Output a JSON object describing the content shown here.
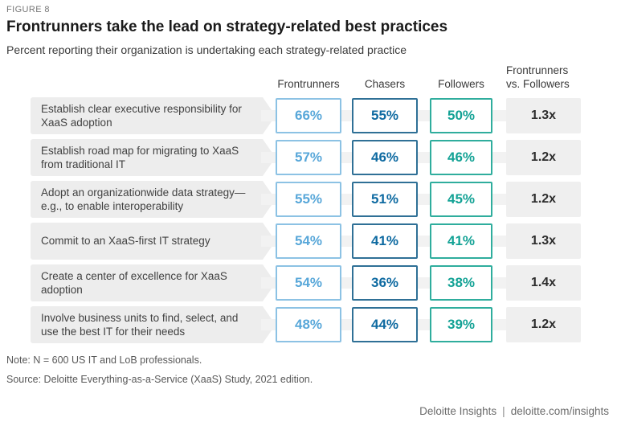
{
  "figure": {
    "label": "FIGURE 8",
    "title": "Frontrunners take the lead on strategy-related best practices",
    "subtitle": "Percent reporting their organization is undertaking each strategy-related practice"
  },
  "table": {
    "columns": [
      "Frontrunners",
      "Chasers",
      "Followers"
    ],
    "ratio_column": {
      "line1": "Frontrunners",
      "line2": "vs. Followers"
    },
    "rows": [
      {
        "label": "Establish clear executive responsibility for XaaS adoption",
        "frontrunners": "66%",
        "chasers": "55%",
        "followers": "50%",
        "ratio": "1.3x"
      },
      {
        "label": "Establish road map for migrating to XaaS from traditional IT",
        "frontrunners": "57%",
        "chasers": "46%",
        "followers": "46%",
        "ratio": "1.2x"
      },
      {
        "label": "Adopt an organizationwide data strategy—e.g., to enable interoperability",
        "frontrunners": "55%",
        "chasers": "51%",
        "followers": "45%",
        "ratio": "1.2x"
      },
      {
        "label": "Commit to an XaaS-first IT strategy",
        "frontrunners": "54%",
        "chasers": "41%",
        "followers": "41%",
        "ratio": "1.3x"
      },
      {
        "label": "Create a center of excellence for XaaS adoption",
        "frontrunners": "54%",
        "chasers": "36%",
        "followers": "38%",
        "ratio": "1.4x"
      },
      {
        "label": "Involve business units to find, select, and use the best IT for their needs",
        "frontrunners": "48%",
        "chasers": "44%",
        "followers": "39%",
        "ratio": "1.2x"
      }
    ]
  },
  "notes": {
    "note": "Note: N = 600 US IT and LoB professionals.",
    "source": "Source: Deloitte Everything-as-a-Service (XaaS) Study, 2021 edition."
  },
  "footer": {
    "brand": "Deloitte Insights",
    "separator": "|",
    "url": "deloitte.com/insights"
  },
  "colors": {
    "frontrunners_text": "#58a7d9",
    "frontrunners_border": "#8cc2e4",
    "chasers_text": "#0e6aa1",
    "chasers_border": "#2f7096",
    "followers_text": "#13a295",
    "followers_border": "#2fad9d",
    "label_band_bg": "#ededed",
    "connector_bg": "#f2f2f2",
    "ratio_bg": "#efefef",
    "ratio_text": "#2d2d2d"
  },
  "chart_data": {
    "type": "table",
    "title": "Frontrunners take the lead on strategy-related best practices",
    "subtitle": "Percent reporting their organization is undertaking each strategy-related practice",
    "categories": [
      "Establish clear executive responsibility for XaaS adoption",
      "Establish road map for migrating to XaaS from traditional IT",
      "Adopt an organizationwide data strategy—e.g., to enable interoperability",
      "Commit to an XaaS-first IT strategy",
      "Create a center of excellence for XaaS adoption",
      "Involve business units to find, select, and use the best IT for their needs"
    ],
    "series": [
      {
        "name": "Frontrunners",
        "unit": "%",
        "values": [
          66,
          57,
          55,
          54,
          54,
          48
        ]
      },
      {
        "name": "Chasers",
        "unit": "%",
        "values": [
          55,
          46,
          51,
          41,
          36,
          44
        ]
      },
      {
        "name": "Followers",
        "unit": "%",
        "values": [
          50,
          46,
          45,
          41,
          38,
          39
        ]
      },
      {
        "name": "Frontrunners vs. Followers",
        "values": [
          "1.3x",
          "1.2x",
          "1.2x",
          "1.3x",
          "1.4x",
          "1.2x"
        ]
      }
    ],
    "note": "Note: N = 600 US IT and LoB professionals.",
    "source": "Source: Deloitte Everything-as-a-Service (XaaS) Study, 2021 edition."
  }
}
